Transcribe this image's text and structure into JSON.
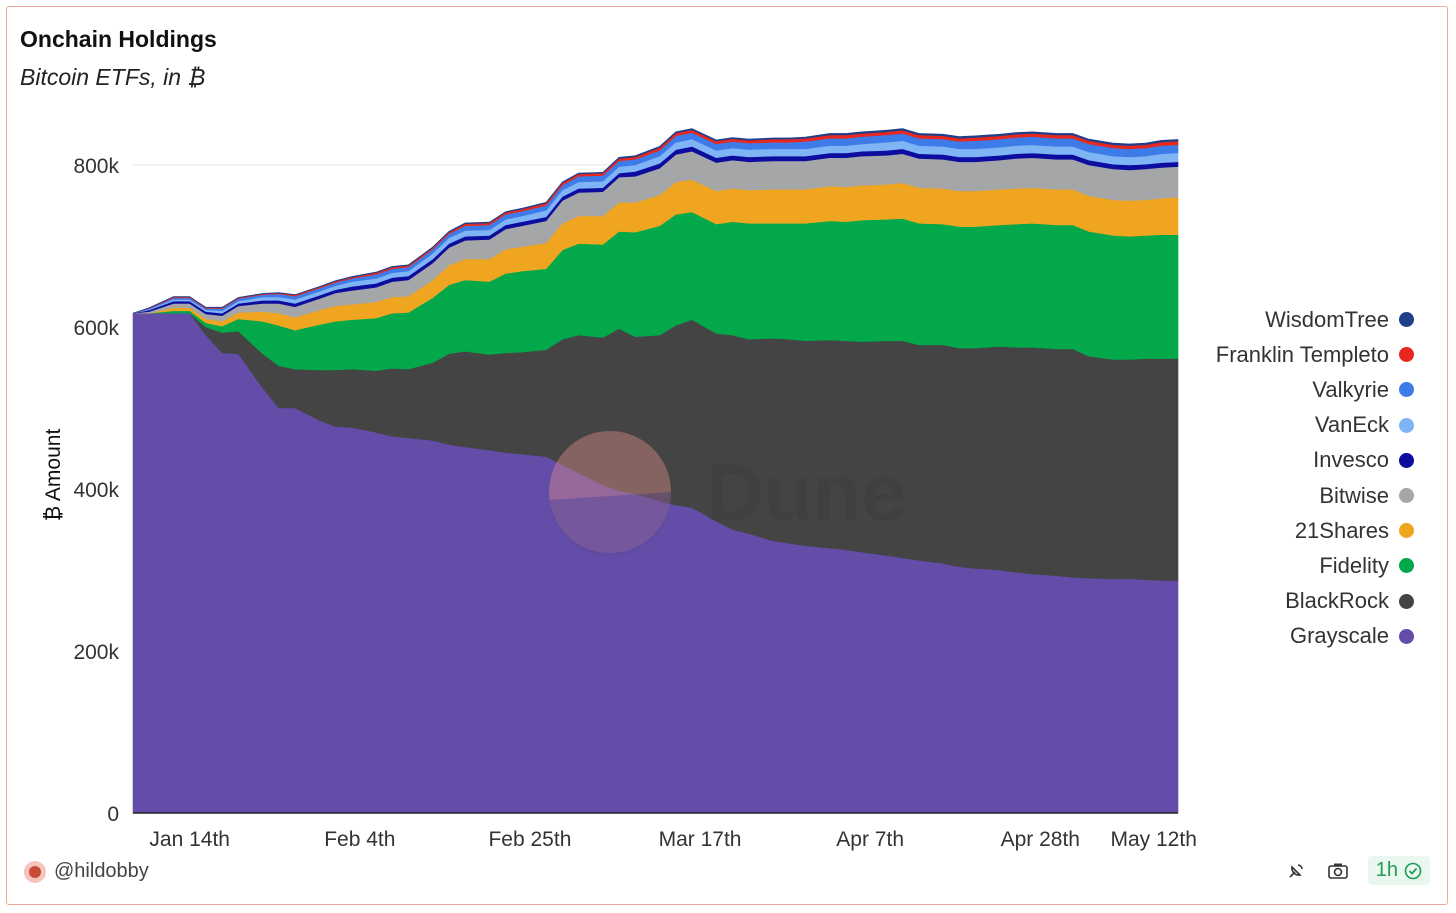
{
  "header": {
    "title": "Onchain Holdings",
    "subtitle": "Bitcoin ETFs, in ₿"
  },
  "footer": {
    "user": "@hildobby",
    "refresh_label": "1h"
  },
  "watermark": {
    "text": "Dune"
  },
  "chart_data": {
    "type": "area",
    "stacked": true,
    "ylabel": "₿ Amount",
    "xlabel": "",
    "ylim": [
      0,
      850000
    ],
    "yticks": [
      0,
      200000,
      400000,
      600000,
      800000
    ],
    "ytick_labels": [
      "0",
      "200k",
      "400k",
      "600k",
      "800k"
    ],
    "xticks": [
      {
        "label": "Jan 14th",
        "x": 7
      },
      {
        "label": "Feb 4th",
        "x": 28
      },
      {
        "label": "Feb 25th",
        "x": 49
      },
      {
        "label": "Mar 17th",
        "x": 70
      },
      {
        "label": "Apr 7th",
        "x": 91
      },
      {
        "label": "Apr 28th",
        "x": 112
      },
      {
        "label": "May 12th",
        "x": 126
      }
    ],
    "xlim": [
      0,
      129
    ],
    "grid": "horizontal",
    "legend_position": "right",
    "x": [
      0,
      2,
      5,
      7,
      9,
      11,
      13,
      16,
      18,
      20,
      23,
      25,
      27,
      30,
      32,
      34,
      37,
      39,
      41,
      44,
      46,
      48,
      51,
      53,
      55,
      58,
      60,
      62,
      65,
      67,
      69,
      72,
      74,
      76,
      79,
      81,
      83,
      86,
      88,
      90,
      93,
      95,
      97,
      100,
      102,
      104,
      107,
      109,
      111,
      114,
      116,
      118,
      121,
      123,
      125,
      127,
      129
    ],
    "series": [
      {
        "name": "Grayscale",
        "color": "#634da8",
        "values": [
          617000,
          617000,
          617000,
          617000,
          590000,
          568000,
          567000,
          525000,
          500000,
          500000,
          485000,
          477000,
          476000,
          470000,
          465000,
          463000,
          460000,
          455000,
          452000,
          448000,
          445000,
          443000,
          440000,
          430000,
          420000,
          405000,
          398000,
          394000,
          385000,
          380000,
          377000,
          360000,
          350000,
          345000,
          336000,
          333000,
          330000,
          327000,
          325000,
          322000,
          318000,
          315000,
          312000,
          308000,
          304000,
          302000,
          300000,
          297000,
          295000,
          293000,
          291000,
          290000,
          289000,
          289000,
          288000,
          287000,
          287000
        ]
      },
      {
        "name": "BlackRock",
        "color": "#444444",
        "values": [
          0,
          0,
          0,
          0,
          10000,
          25000,
          28000,
          42000,
          52000,
          48000,
          62000,
          70000,
          72000,
          76000,
          84000,
          85000,
          96000,
          112000,
          118000,
          118000,
          123000,
          126000,
          132000,
          155000,
          170000,
          182000,
          200000,
          194000,
          205000,
          222000,
          232000,
          232000,
          240000,
          240000,
          250000,
          252000,
          253000,
          257000,
          258000,
          260000,
          265000,
          268000,
          266000,
          270000,
          270000,
          272000,
          276000,
          278000,
          280000,
          280000,
          282000,
          274000,
          271000,
          271000,
          273000,
          274000,
          274000
        ]
      },
      {
        "name": "Fidelity",
        "color": "#02a84a",
        "values": [
          0,
          0,
          3000,
          3000,
          5000,
          8000,
          15000,
          40000,
          50000,
          48000,
          56000,
          60000,
          61000,
          65000,
          68000,
          70000,
          80000,
          85000,
          88000,
          90000,
          98000,
          100000,
          100000,
          110000,
          113000,
          115000,
          120000,
          129000,
          135000,
          137000,
          133000,
          135000,
          140000,
          143000,
          142000,
          143000,
          145000,
          147000,
          147000,
          150000,
          150000,
          151000,
          150000,
          149000,
          150000,
          150000,
          150000,
          152000,
          153000,
          153000,
          153000,
          154000,
          153000,
          152000,
          152000,
          153000,
          153000
        ]
      },
      {
        "name": "21Shares",
        "color": "#f0a520",
        "values": [
          0,
          0,
          4000,
          4000,
          5000,
          6000,
          8000,
          12000,
          15000,
          16000,
          18000,
          19000,
          19000,
          20000,
          20000,
          20000,
          22000,
          24000,
          26000,
          28000,
          30000,
          30000,
          32000,
          33000,
          34000,
          35000,
          36000,
          37000,
          38000,
          40000,
          40000,
          41000,
          41000,
          41000,
          42000,
          42000,
          42000,
          43000,
          43000,
          43000,
          43000,
          44000,
          44000,
          44000,
          44000,
          44000,
          44000,
          44000,
          44000,
          44000,
          44000,
          44000,
          44000,
          44000,
          44000,
          45000,
          46000
        ]
      },
      {
        "name": "Bitwise",
        "color": "#a4a6a8",
        "values": [
          0,
          2000,
          5000,
          5000,
          6000,
          7000,
          8000,
          10000,
          12000,
          13000,
          14000,
          16000,
          17000,
          18000,
          19000,
          20000,
          21000,
          22000,
          23000,
          24000,
          25000,
          26000,
          27000,
          28000,
          29000,
          30000,
          31000,
          32000,
          33000,
          34000,
          35000,
          35000,
          35000,
          35000,
          35000,
          35000,
          35000,
          35000,
          36000,
          36000,
          36000,
          36000,
          36000,
          36000,
          36000,
          36000,
          36000,
          37000,
          37000,
          37000,
          37000,
          38000,
          38000,
          38000,
          38000,
          38000,
          38000
        ]
      },
      {
        "name": "Invesco",
        "color": "#0c0c9e",
        "values": [
          0,
          2000,
          3000,
          3000,
          3000,
          3000,
          3000,
          4000,
          4000,
          4000,
          4000,
          4000,
          5000,
          5000,
          5000,
          5000,
          5000,
          5000,
          5000,
          5000,
          5000,
          5000,
          5000,
          5000,
          5000,
          5000,
          5000,
          6000,
          6000,
          6000,
          6000,
          6000,
          6000,
          6000,
          6000,
          6000,
          6000,
          6000,
          6000,
          6000,
          6000,
          6000,
          6000,
          6000,
          6000,
          6000,
          6000,
          6000,
          6000,
          6000,
          6000,
          6000,
          6000,
          6000,
          6000,
          6000,
          6000
        ]
      },
      {
        "name": "VanEck",
        "color": "#7fb4f5",
        "values": [
          0,
          1000,
          2000,
          2000,
          2000,
          3000,
          3000,
          4000,
          4000,
          5000,
          5000,
          5000,
          6000,
          6000,
          6000,
          6000,
          7000,
          7000,
          7000,
          7000,
          7000,
          7000,
          8000,
          8000,
          8000,
          8000,
          8000,
          8000,
          9000,
          9000,
          9000,
          9000,
          9000,
          9000,
          9000,
          9000,
          9000,
          9000,
          9000,
          9000,
          10000,
          10000,
          10000,
          10000,
          10000,
          10000,
          10000,
          10000,
          10000,
          10000,
          10000,
          10000,
          10000,
          10000,
          10000,
          11000,
          11000
        ]
      },
      {
        "name": "Valkyrie",
        "color": "#3d7be8",
        "values": [
          0,
          1000,
          2000,
          2000,
          2000,
          3000,
          3000,
          3000,
          4000,
          4000,
          4000,
          4000,
          4000,
          5000,
          5000,
          5000,
          5000,
          5000,
          6000,
          6000,
          6000,
          6000,
          6000,
          6000,
          7000,
          7000,
          7000,
          7000,
          7000,
          8000,
          8000,
          8000,
          8000,
          8000,
          8000,
          8000,
          9000,
          9000,
          9000,
          9000,
          9000,
          9000,
          9000,
          9000,
          9000,
          10000,
          10000,
          10000,
          10000,
          10000,
          10000,
          10000,
          10000,
          10000,
          10000,
          10000,
          10000
        ]
      },
      {
        "name": "Franklin Templeto",
        "color": "#e8281e",
        "values": [
          0,
          500,
          1000,
          1000,
          1000,
          1000,
          1000,
          1000,
          1000,
          1500,
          1500,
          1500,
          1500,
          2000,
          2000,
          2000,
          2000,
          2000,
          2500,
          2500,
          2500,
          2500,
          3000,
          3000,
          3000,
          3000,
          3000,
          3000,
          3500,
          3500,
          3500,
          3500,
          3500,
          3500,
          4000,
          4000,
          4000,
          4000,
          4000,
          4000,
          4000,
          4000,
          4000,
          4000,
          4000,
          4000,
          4000,
          4000,
          4000,
          4000,
          4000,
          4000,
          4000,
          4000,
          4000,
          4500,
          4500
        ]
      },
      {
        "name": "WisdomTree",
        "color": "#1f3f8a",
        "values": [
          0,
          300,
          500,
          500,
          500,
          500,
          500,
          500,
          500,
          500,
          500,
          800,
          800,
          800,
          800,
          800,
          800,
          1000,
          1000,
          1000,
          1000,
          1000,
          1000,
          1000,
          1000,
          1000,
          1500,
          1500,
          1500,
          1500,
          1500,
          1500,
          1500,
          1500,
          1500,
          1500,
          1500,
          2000,
          2000,
          2000,
          2000,
          2000,
          2000,
          2000,
          2000,
          2000,
          2000,
          2000,
          2000,
          2000,
          2000,
          2000,
          2000,
          2000,
          2000,
          2000,
          2000
        ]
      }
    ]
  },
  "icons": {
    "footer": [
      "satellite-icon",
      "camera-icon",
      "check-circle-icon"
    ]
  }
}
